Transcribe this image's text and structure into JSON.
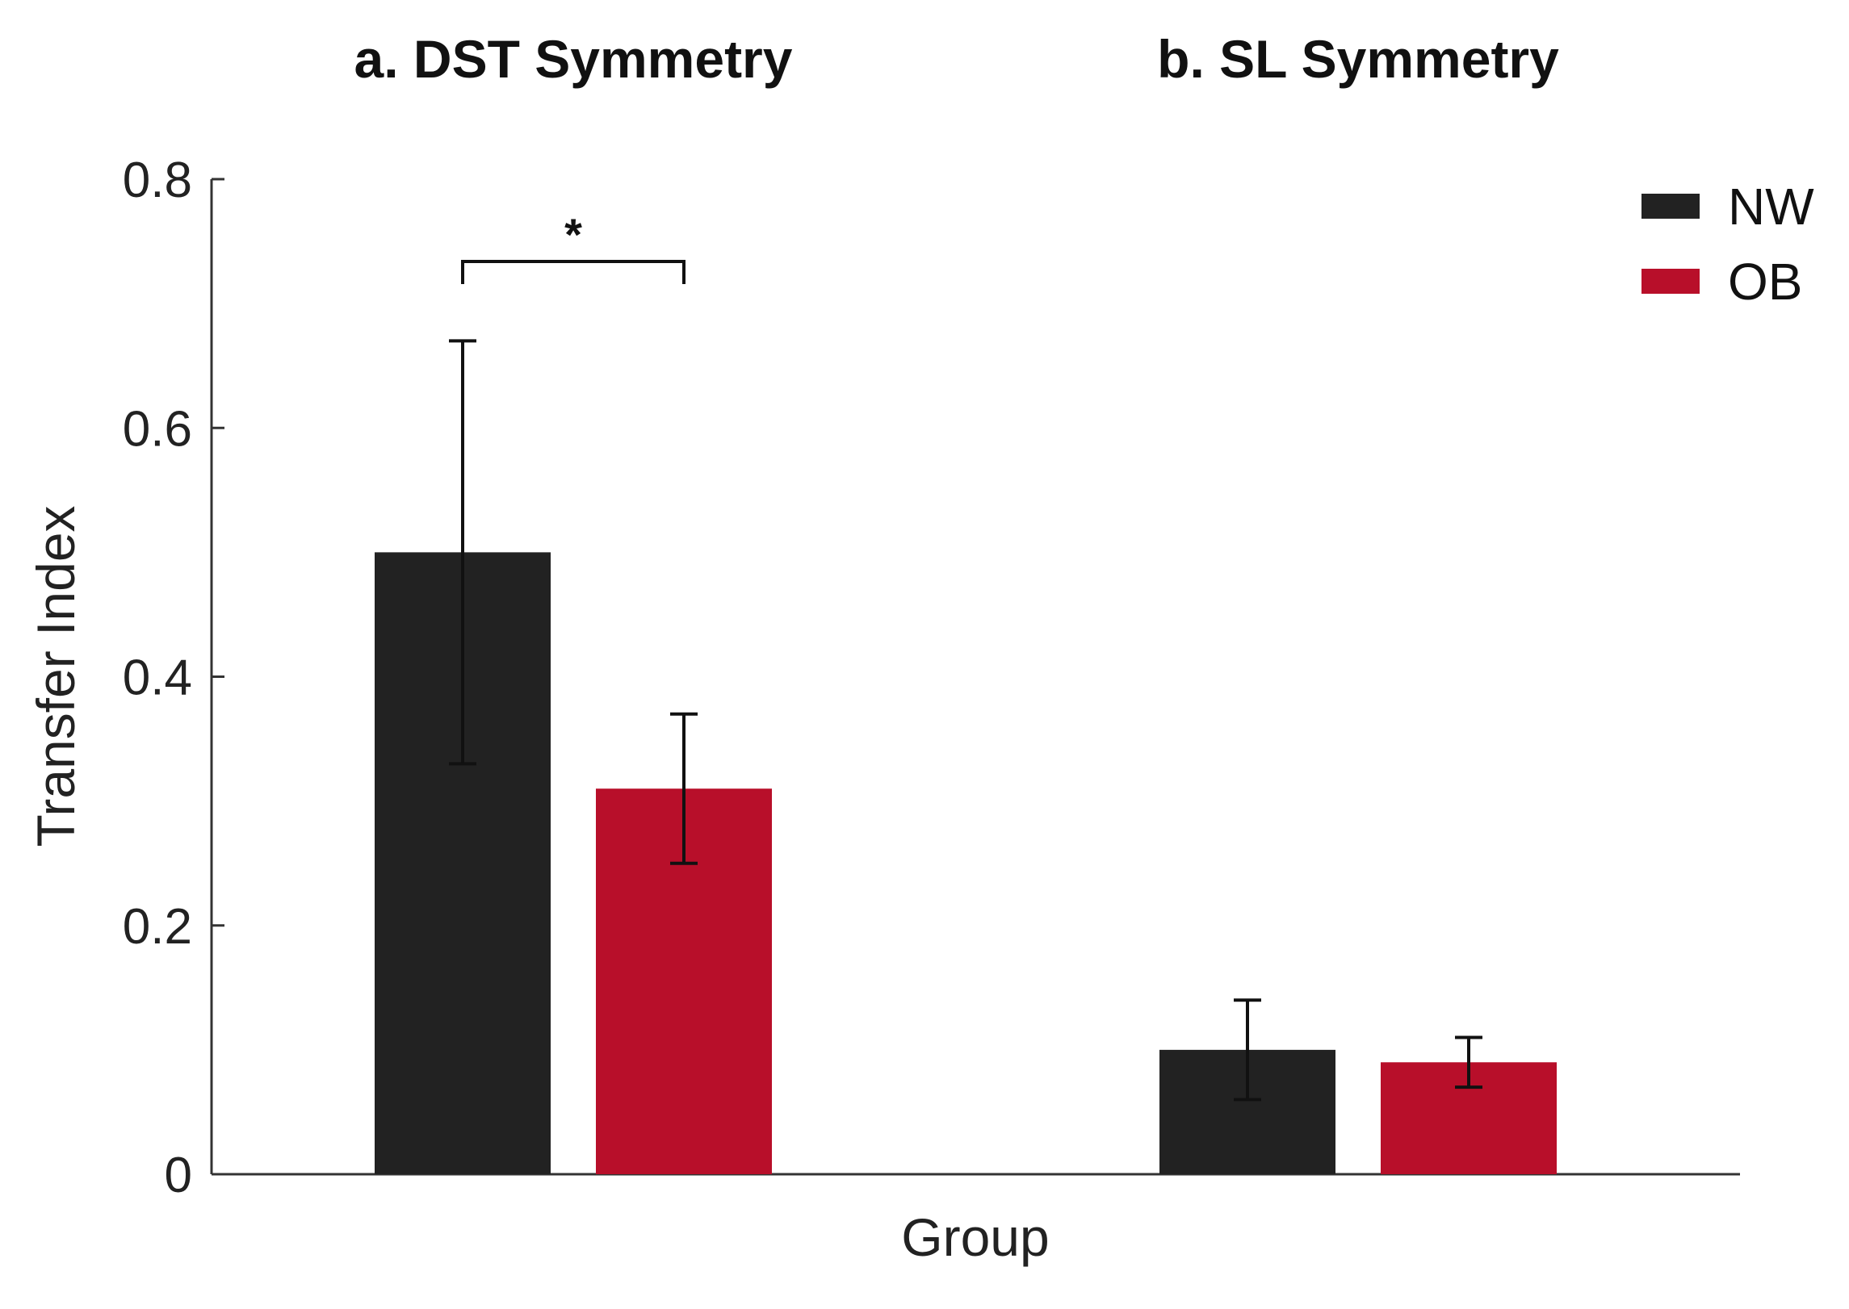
{
  "chart_data": {
    "type": "bar",
    "titles": [
      "a. DST Symmetry",
      "b. SL Symmetry"
    ],
    "xlabel": "Group",
    "ylabel": "Transfer Index",
    "ylim": [
      0,
      0.8
    ],
    "yticks": [
      0,
      0.2,
      0.4,
      0.6,
      0.8
    ],
    "ytick_labels": [
      "0",
      "0.2",
      "0.4",
      "0.6",
      "0.8"
    ],
    "legend": {
      "position": "top-right"
    },
    "colors": {
      "NW": "#222222",
      "OB": "#b80f2a"
    },
    "series": [
      {
        "name": "NW",
        "values": [
          0.5,
          0.1
        ],
        "error": [
          0.17,
          0.04
        ]
      },
      {
        "name": "OB",
        "values": [
          0.31,
          0.09
        ],
        "error": [
          0.06,
          0.02
        ]
      }
    ],
    "significance": [
      {
        "group": 0,
        "label": "*"
      }
    ]
  }
}
